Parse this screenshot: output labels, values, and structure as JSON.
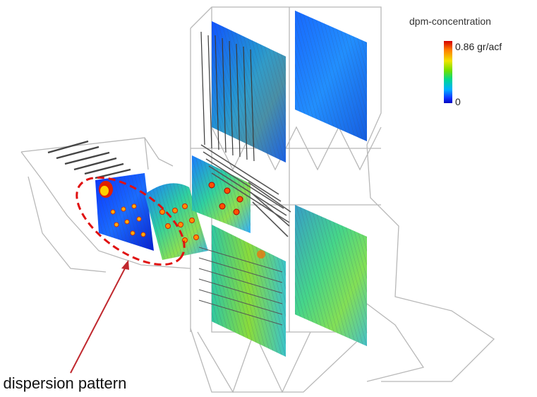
{
  "legend": {
    "title": "dpm-concentration",
    "max_label": "0.86 gr/acf",
    "min_label": "0",
    "colors": [
      "#d40000",
      "#ff7a00",
      "#f0e400",
      "#6ee000",
      "#00d890",
      "#00b0ff",
      "#1030ff",
      "#0008c0"
    ]
  },
  "callout": {
    "text": "nt dispersion pattern",
    "color": "#e01010"
  },
  "accent": {
    "arrow": "#c0282e",
    "outline": "#b8b8b8"
  }
}
